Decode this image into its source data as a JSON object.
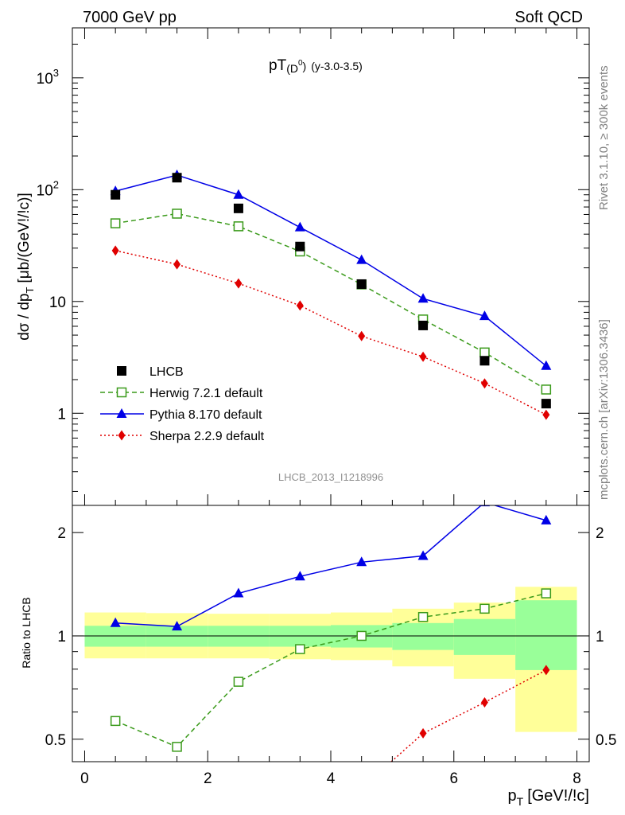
{
  "header": {
    "left": "7000 GeV pp",
    "right": "Soft QCD"
  },
  "side_labels": {
    "rivet": "Rivet 3.1.10, ≥ 300k events",
    "mcplots": "mcplots.cern.ch [arXiv:1306.3436]"
  },
  "chart_data": [
    {
      "type": "scatter",
      "panel": "main",
      "title": "pT(D⁰) (y-3.0-3.5)",
      "title_main": "pT",
      "title_paren_open": "(D",
      "title_sup": "0",
      "title_paren_close": ")",
      "title_suffix": "(y-3.0-3.5)",
      "ylabel": "dσ / dp_T [μb/(GeV!/!c)]",
      "ylabel_main": "dσ / dp",
      "ylabel_sub": "T",
      "ylabel_tail": "[μb/(GeV!/!c)]",
      "watermark": "LHCB_2013_I1218996",
      "yscale": "log",
      "xlim": [
        -0.2,
        8.2
      ],
      "ylim": [
        0.15,
        2800
      ],
      "yticks": [
        {
          "value": 1,
          "label": "1"
        },
        {
          "value": 10,
          "label": "10"
        },
        {
          "value": 100,
          "label": "10",
          "sup": "2"
        },
        {
          "value": 1000,
          "label": "10",
          "sup": "3"
        }
      ],
      "legend_position": "lower-left",
      "series": [
        {
          "name": "LHCB",
          "color": "#000000",
          "marker": "square",
          "line": "none",
          "x": [
            0.5,
            1.5,
            2.5,
            3.5,
            4.5,
            5.5,
            6.5,
            7.5
          ],
          "y": [
            90,
            128,
            68,
            31,
            14.3,
            6.1,
            2.95,
            1.22
          ]
        },
        {
          "name": "Herwig 7.2.1 default",
          "color": "#3a9a1a",
          "marker": "open-square",
          "line": "dashed",
          "x": [
            0.5,
            1.5,
            2.5,
            3.5,
            4.5,
            5.5,
            6.5,
            7.5
          ],
          "y": [
            50,
            61,
            47,
            28,
            14.2,
            6.9,
            3.5,
            1.63
          ]
        },
        {
          "name": "Pythia 8.170 default",
          "color": "#0000e6",
          "marker": "triangle",
          "line": "solid",
          "x": [
            0.5,
            1.5,
            2.5,
            3.5,
            4.5,
            5.5,
            6.5,
            7.5
          ],
          "y": [
            97,
            135,
            90,
            46,
            23.5,
            10.6,
            7.4,
            2.65
          ]
        },
        {
          "name": "Sherpa 2.2.9 default",
          "color": "#e00000",
          "marker": "diamond",
          "line": "dotted",
          "x": [
            0.5,
            1.5,
            2.5,
            3.5,
            4.5,
            5.5,
            6.5,
            7.5
          ],
          "y": [
            28.5,
            21.5,
            14.5,
            9.2,
            4.9,
            3.2,
            1.85,
            0.97
          ]
        }
      ]
    },
    {
      "type": "scatter",
      "panel": "ratio",
      "ylabel": "Ratio to LHCB",
      "xlabel": "p_T [GeV!/!c]",
      "xlabel_main": "p",
      "xlabel_sub": "T",
      "xlabel_tail": "[GeV!/!c]",
      "yscale": "log",
      "xlim": [
        -0.2,
        8.2
      ],
      "ylim": [
        0.43,
        2.4
      ],
      "xticks": [
        0,
        2,
        4,
        6,
        8
      ],
      "yticks": [
        {
          "value": 0.5,
          "label": "0.5"
        },
        {
          "value": 1,
          "label": "1"
        },
        {
          "value": 2,
          "label": "2"
        }
      ],
      "uncertainty_bands": {
        "bins": [
          [
            0,
            1
          ],
          [
            1,
            2
          ],
          [
            2,
            3
          ],
          [
            3,
            4
          ],
          [
            4,
            5
          ],
          [
            5,
            6
          ],
          [
            6,
            7
          ],
          [
            7,
            8
          ]
        ],
        "stat_color": "#99ff99",
        "total_color": "#ffff99",
        "stat_lo": [
          0.93,
          0.93,
          0.93,
          0.93,
          0.925,
          0.91,
          0.88,
          0.795
        ],
        "stat_hi": [
          1.07,
          1.07,
          1.07,
          1.07,
          1.075,
          1.09,
          1.12,
          1.27
        ],
        "total_lo": [
          0.86,
          0.86,
          0.86,
          0.855,
          0.85,
          0.815,
          0.75,
          0.525
        ],
        "total_hi": [
          1.17,
          1.165,
          1.16,
          1.16,
          1.17,
          1.2,
          1.25,
          1.39
        ]
      },
      "series": [
        {
          "name": "Herwig 7.2.1 default",
          "color": "#3a9a1a",
          "x": [
            0.5,
            1.5,
            2.5,
            3.5,
            4.5,
            5.5,
            6.5,
            7.5
          ],
          "y": [
            0.565,
            0.475,
            0.735,
            0.915,
            1.0,
            1.135,
            1.2,
            1.33
          ]
        },
        {
          "name": "Pythia 8.170 default",
          "color": "#0000e6",
          "x": [
            0.5,
            1.5,
            2.5,
            3.5,
            4.5,
            5.5,
            6.5,
            7.5
          ],
          "y": [
            1.09,
            1.065,
            1.33,
            1.49,
            1.64,
            1.71,
            2.45,
            2.17
          ]
        },
        {
          "name": "Sherpa 2.2.9 default",
          "color": "#e00000",
          "x": [
            5.5,
            6.5,
            7.5
          ],
          "y": [
            0.52,
            0.64,
            0.795
          ]
        }
      ]
    }
  ]
}
